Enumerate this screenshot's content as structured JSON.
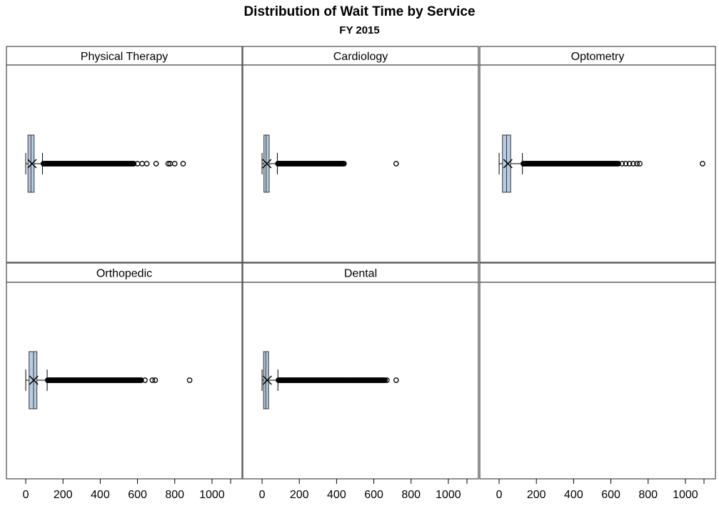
{
  "chart_data": {
    "type": "boxplot",
    "title": "Distribution of Wait Time by Service",
    "subtitle": "FY 2015",
    "x_ticks": [
      0,
      200,
      400,
      600,
      800,
      1000
    ],
    "xlim": [
      -50,
      1100
    ],
    "colors": {
      "box_fill": "#b8cce4",
      "box_stroke": "#333333",
      "frame": "#555555"
    },
    "panels": [
      {
        "name": "Physical Therapy",
        "min": 0,
        "q1": 12,
        "median": 28,
        "mean": 34,
        "q3": 45,
        "whiskerHigh": 90,
        "outlier_ranges": [
          [
            95,
            580
          ]
        ],
        "outliers": [
          600,
          625,
          650,
          700,
          765,
          775,
          800,
          845
        ]
      },
      {
        "name": "Cardiology",
        "min": 0,
        "q1": 10,
        "median": 22,
        "mean": 26,
        "q3": 38,
        "whiskerHigh": 82,
        "outlier_ranges": [
          [
            85,
            440
          ]
        ],
        "outliers": [
          720
        ]
      },
      {
        "name": "Optometry",
        "min": 0,
        "q1": 18,
        "median": 40,
        "mean": 47,
        "q3": 62,
        "whiskerHigh": 125,
        "outlier_ranges": [
          [
            130,
            640
          ]
        ],
        "outliers": [
          660,
          680,
          700,
          720,
          740,
          755,
          1092
        ]
      },
      {
        "name": "Orthopedic",
        "min": 0,
        "q1": 18,
        "median": 42,
        "mean": 43,
        "q3": 60,
        "whiskerHigh": 115,
        "outlier_ranges": [
          [
            118,
            620
          ]
        ],
        "outliers": [
          640,
          680,
          695,
          880
        ]
      },
      {
        "name": "Dental",
        "min": 0,
        "q1": 8,
        "median": 20,
        "mean": 28,
        "q3": 35,
        "whiskerHigh": 85,
        "outlier_ranges": [
          [
            88,
            660
          ]
        ],
        "outliers": [
          670,
          720
        ]
      },
      {
        "name": "",
        "empty": true
      }
    ]
  }
}
